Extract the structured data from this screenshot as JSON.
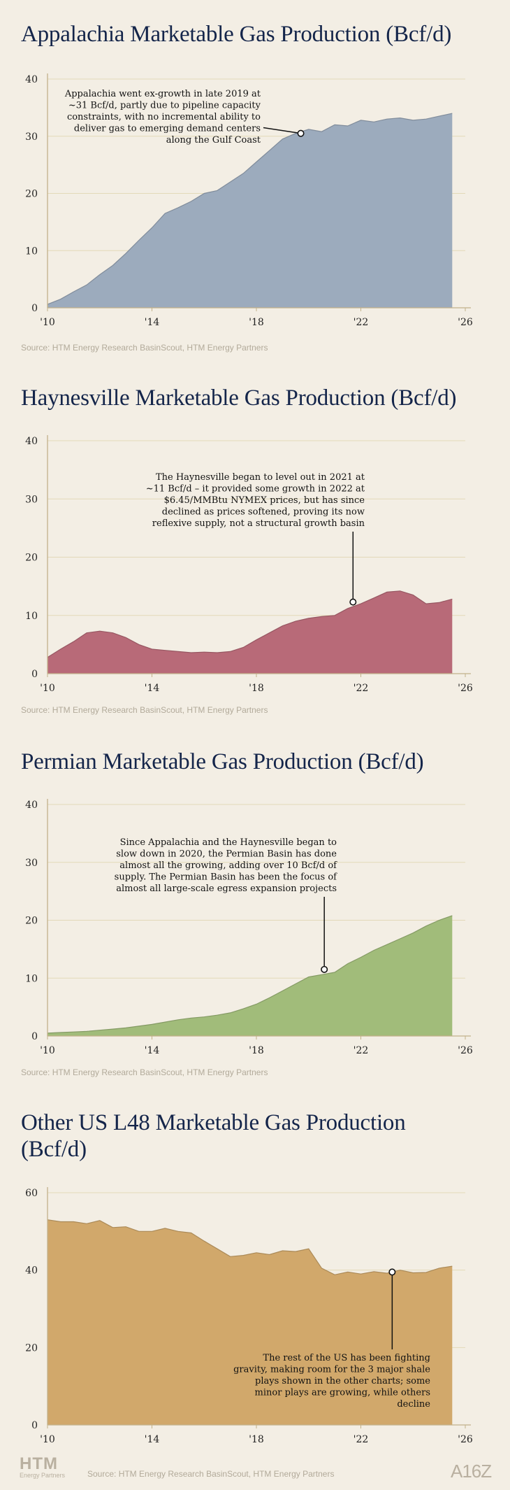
{
  "chart_data": [
    {
      "type": "area",
      "title": "Appalachia Marketable Gas Production (Bcf/d)",
      "xlabel": "",
      "ylabel": "",
      "xlim": [
        2010,
        2026
      ],
      "ylim": [
        0,
        40
      ],
      "yticks": [
        0,
        10,
        20,
        30,
        40
      ],
      "xtick_labels": [
        "'10",
        "'14",
        "'18",
        "'22",
        "'26"
      ],
      "color": "#9cabbd",
      "x": [
        2010,
        2010.5,
        2011,
        2011.5,
        2012,
        2012.5,
        2013,
        2013.5,
        2014,
        2014.5,
        2015,
        2015.5,
        2016,
        2016.5,
        2017,
        2017.5,
        2018,
        2018.5,
        2019,
        2019.5,
        2020,
        2020.5,
        2021,
        2021.5,
        2022,
        2022.5,
        2023,
        2023.5,
        2024,
        2024.5,
        2025,
        2025.5
      ],
      "values": [
        0.6,
        1.5,
        2.8,
        4.0,
        5.8,
        7.4,
        9.5,
        11.8,
        14.0,
        16.5,
        17.5,
        18.6,
        20.0,
        20.5,
        22.0,
        23.5,
        25.5,
        27.5,
        29.5,
        30.5,
        31.2,
        30.8,
        32.0,
        31.8,
        32.8,
        32.5,
        33.0,
        33.2,
        32.8,
        33.0,
        33.5,
        34.0
      ],
      "annotation": {
        "text": [
          "Appalachia went ex-growth in late 2019 at",
          "~31 Bcf/d, partly due to pipeline capacity",
          "constraints, with no incremental ability to",
          "deliver gas to emerging demand centers",
          "along the Gulf Coast"
        ],
        "point": [
          2019.7,
          30.5
        ]
      },
      "source": "Source: HTM Energy Research BasinScout, HTM Energy Partners"
    },
    {
      "type": "area",
      "title": "Haynesville Marketable Gas Production (Bcf/d)",
      "xlabel": "",
      "ylabel": "",
      "xlim": [
        2010,
        2026
      ],
      "ylim": [
        0,
        40
      ],
      "yticks": [
        0,
        10,
        20,
        30,
        40
      ],
      "xtick_labels": [
        "'10",
        "'14",
        "'18",
        "'22",
        "'26"
      ],
      "color": "#b86a78",
      "x": [
        2010,
        2010.5,
        2011,
        2011.5,
        2012,
        2012.5,
        2013,
        2013.5,
        2014,
        2014.5,
        2015,
        2015.5,
        2016,
        2016.5,
        2017,
        2017.5,
        2018,
        2018.5,
        2019,
        2019.5,
        2020,
        2020.5,
        2021,
        2021.5,
        2022,
        2022.5,
        2023,
        2023.5,
        2024,
        2024.5,
        2025,
        2025.5
      ],
      "values": [
        2.8,
        4.2,
        5.5,
        7.0,
        7.3,
        7.0,
        6.2,
        5.0,
        4.2,
        4.0,
        3.8,
        3.6,
        3.7,
        3.6,
        3.8,
        4.5,
        5.8,
        7.0,
        8.2,
        9.0,
        9.5,
        9.8,
        10.0,
        11.2,
        12.0,
        13.0,
        14.0,
        14.2,
        13.5,
        12.0,
        12.2,
        12.8
      ],
      "annotation": {
        "text": [
          "The Haynesville began to level out in 2021 at",
          "~11 Bcf/d – it provided some growth in 2022 at",
          "$6.45/MMBtu NYMEX prices, but has since",
          "declined as prices softened, proving its now",
          "reflexive supply, not a structural growth basin"
        ],
        "point": [
          2021.7,
          12.3
        ]
      },
      "source": "Source: HTM Energy Research BasinScout, HTM Energy Partners"
    },
    {
      "type": "area",
      "title": "Permian Marketable Gas Production (Bcf/d)",
      "xlabel": "",
      "ylabel": "",
      "xlim": [
        2010,
        2026
      ],
      "ylim": [
        0,
        40
      ],
      "yticks": [
        0,
        10,
        20,
        30,
        40
      ],
      "xtick_labels": [
        "'10",
        "'14",
        "'18",
        "'22",
        "'26"
      ],
      "color": "#a1bc7a",
      "x": [
        2010,
        2010.5,
        2011,
        2011.5,
        2012,
        2012.5,
        2013,
        2013.5,
        2014,
        2014.5,
        2015,
        2015.5,
        2016,
        2016.5,
        2017,
        2017.5,
        2018,
        2018.5,
        2019,
        2019.5,
        2020,
        2020.5,
        2021,
        2021.5,
        2022,
        2022.5,
        2023,
        2023.5,
        2024,
        2024.5,
        2025,
        2025.5
      ],
      "values": [
        0.5,
        0.6,
        0.7,
        0.8,
        1.0,
        1.2,
        1.4,
        1.7,
        2.0,
        2.4,
        2.8,
        3.1,
        3.3,
        3.6,
        4.0,
        4.7,
        5.5,
        6.6,
        7.8,
        9.0,
        10.2,
        10.6,
        11.0,
        12.5,
        13.6,
        14.8,
        15.8,
        16.8,
        17.8,
        19.0,
        20.0,
        20.8
      ],
      "annotation": {
        "text": [
          "Since Appalachia and the Haynesville began to",
          "slow down in 2020, the Permian Basin has done",
          "almost all the growing, adding over 10 Bcf/d of",
          "supply. The Permian Basin has been the focus of",
          "almost all large-scale egress expansion projects"
        ],
        "point": [
          2020.6,
          11.5
        ]
      },
      "source": "Source: HTM Energy Research BasinScout, HTM Energy Partners"
    },
    {
      "type": "area",
      "title": "Other US L48 Marketable Gas Production (Bcf/d)",
      "xlabel": "",
      "ylabel": "",
      "xlim": [
        2010,
        2026
      ],
      "ylim": [
        0,
        60
      ],
      "yticks": [
        0,
        20,
        40,
        60
      ],
      "xtick_labels": [
        "'10",
        "'14",
        "'18",
        "'22",
        "'26"
      ],
      "color": "#d1a86b",
      "x": [
        2010,
        2010.5,
        2011,
        2011.5,
        2012,
        2012.5,
        2013,
        2013.5,
        2014,
        2014.5,
        2015,
        2015.5,
        2016,
        2016.5,
        2017,
        2017.5,
        2018,
        2018.5,
        2019,
        2019.5,
        2020,
        2020.5,
        2021,
        2021.5,
        2022,
        2022.5,
        2023,
        2023.5,
        2024,
        2024.5,
        2025,
        2025.5
      ],
      "values": [
        53.0,
        52.5,
        52.5,
        52.0,
        52.8,
        51.0,
        51.2,
        50.0,
        50.0,
        50.8,
        50.0,
        49.6,
        47.5,
        45.5,
        43.5,
        43.8,
        44.5,
        44.0,
        45.0,
        44.8,
        45.5,
        40.5,
        38.8,
        39.5,
        39.0,
        39.6,
        39.2,
        40.0,
        39.3,
        39.4,
        40.5,
        41.0
      ],
      "annotation": {
        "text": [
          "The rest of the US has been fighting",
          "gravity, making room for the 3 major shale",
          "plays shown in the other charts; some",
          "minor plays are growing, while others",
          "decline"
        ],
        "point": [
          2023.2,
          39.5
        ]
      },
      "source": ""
    }
  ],
  "footer": {
    "logo_text": "HTM",
    "logo_subtext": "Energy Partners",
    "source": "Source: HTM Energy Research BasinScout, HTM Energy Partners",
    "brand_right": "A16Z"
  }
}
